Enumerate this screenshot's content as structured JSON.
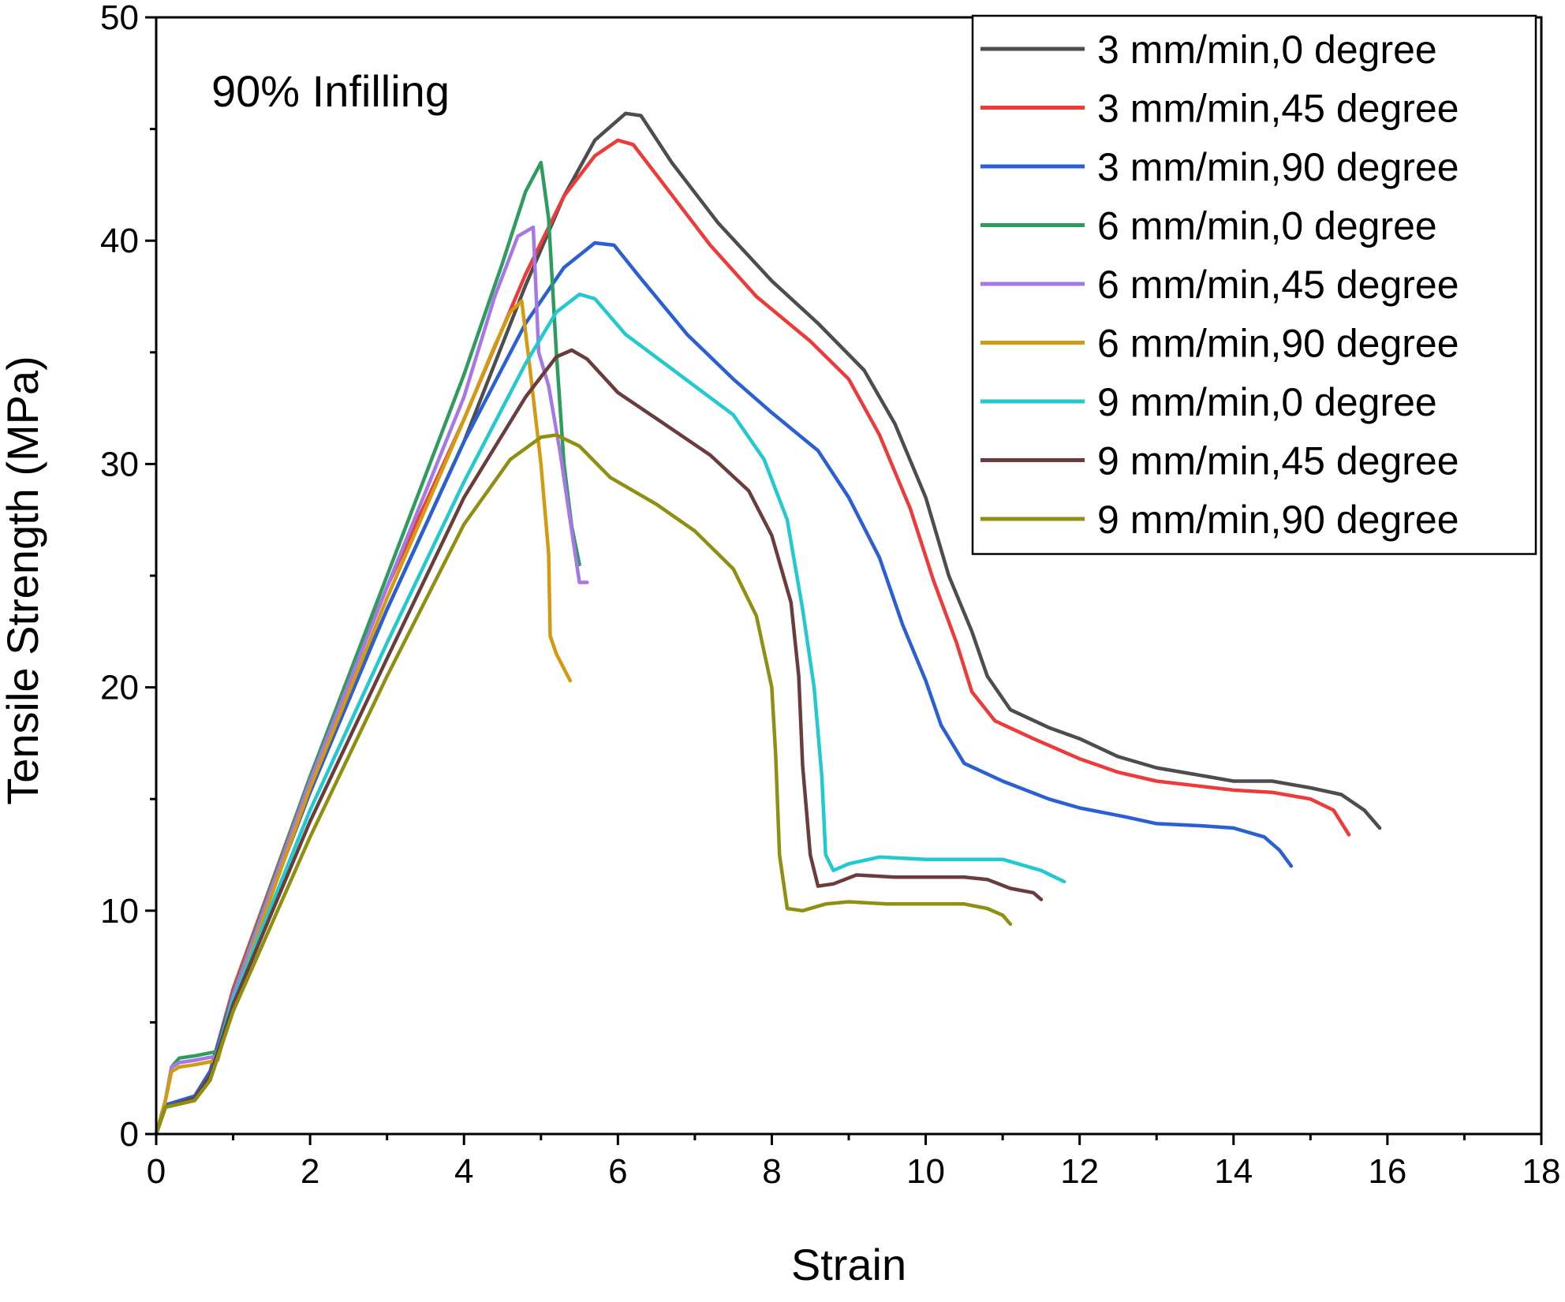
{
  "chart_data": {
    "type": "line",
    "annotation": "90% Infilling",
    "xlabel": "Strain",
    "ylabel": "Tensile Strength (MPa)",
    "xlim": [
      0,
      18
    ],
    "ylim": [
      0,
      50
    ],
    "xticks": [
      0,
      2,
      4,
      6,
      8,
      10,
      12,
      14,
      16,
      18
    ],
    "yticks": [
      0,
      10,
      20,
      30,
      40,
      50
    ],
    "grid": false,
    "legend_position": "top-right",
    "series": [
      {
        "name": "3 mm/min,0 degree",
        "color": "#4d4d4d",
        "points": [
          [
            0,
            0
          ],
          [
            0.12,
            1.2
          ],
          [
            0.5,
            1.6
          ],
          [
            0.7,
            2.6
          ],
          [
            1.0,
            6
          ],
          [
            2,
            15.5
          ],
          [
            3,
            23.5
          ],
          [
            4,
            31
          ],
          [
            4.8,
            38
          ],
          [
            5.3,
            42
          ],
          [
            5.7,
            44.5
          ],
          [
            6.1,
            45.7
          ],
          [
            6.3,
            45.6
          ],
          [
            6.7,
            43.5
          ],
          [
            7.3,
            40.8
          ],
          [
            8,
            38.2
          ],
          [
            8.6,
            36.3
          ],
          [
            9.2,
            34.2
          ],
          [
            9.6,
            31.8
          ],
          [
            10.0,
            28.5
          ],
          [
            10.3,
            25
          ],
          [
            10.6,
            22.5
          ],
          [
            10.8,
            20.5
          ],
          [
            11.1,
            19
          ],
          [
            11.6,
            18.2
          ],
          [
            12,
            17.7
          ],
          [
            12.5,
            16.9
          ],
          [
            13,
            16.4
          ],
          [
            13.5,
            16.1
          ],
          [
            14,
            15.8
          ],
          [
            14.5,
            15.8
          ],
          [
            15,
            15.5
          ],
          [
            15.4,
            15.2
          ],
          [
            15.7,
            14.5
          ],
          [
            15.9,
            13.7
          ]
        ]
      },
      {
        "name": "3 mm/min,45 degree",
        "color": "#ed3b3b",
        "points": [
          [
            0,
            0
          ],
          [
            0.12,
            1.3
          ],
          [
            0.5,
            1.7
          ],
          [
            0.7,
            2.8
          ],
          [
            1.0,
            6.5
          ],
          [
            2,
            16
          ],
          [
            3,
            24.5
          ],
          [
            4,
            32
          ],
          [
            4.8,
            38.5
          ],
          [
            5.3,
            42
          ],
          [
            5.7,
            43.8
          ],
          [
            6.0,
            44.5
          ],
          [
            6.2,
            44.3
          ],
          [
            6.6,
            42.5
          ],
          [
            7.2,
            39.8
          ],
          [
            7.8,
            37.5
          ],
          [
            8.5,
            35.5
          ],
          [
            9.0,
            33.8
          ],
          [
            9.4,
            31.3
          ],
          [
            9.8,
            28
          ],
          [
            10.1,
            24.8
          ],
          [
            10.4,
            22
          ],
          [
            10.6,
            19.8
          ],
          [
            10.9,
            18.5
          ],
          [
            11.4,
            17.7
          ],
          [
            12,
            16.8
          ],
          [
            12.5,
            16.2
          ],
          [
            13,
            15.8
          ],
          [
            13.5,
            15.6
          ],
          [
            14,
            15.4
          ],
          [
            14.5,
            15.3
          ],
          [
            15,
            15
          ],
          [
            15.3,
            14.5
          ],
          [
            15.5,
            13.4
          ]
        ]
      },
      {
        "name": "3 mm/min,90 degree",
        "color": "#2a60d4",
        "points": [
          [
            0,
            0
          ],
          [
            0.12,
            1.3
          ],
          [
            0.5,
            1.7
          ],
          [
            0.7,
            2.8
          ],
          [
            1.0,
            6.3
          ],
          [
            2,
            15.3
          ],
          [
            3,
            23.5
          ],
          [
            4,
            31
          ],
          [
            4.8,
            36.3
          ],
          [
            5.3,
            38.8
          ],
          [
            5.7,
            39.9
          ],
          [
            5.95,
            39.8
          ],
          [
            6.3,
            38.3
          ],
          [
            6.9,
            35.8
          ],
          [
            7.5,
            33.8
          ],
          [
            8,
            32.3
          ],
          [
            8.6,
            30.6
          ],
          [
            9.0,
            28.5
          ],
          [
            9.4,
            25.8
          ],
          [
            9.7,
            22.8
          ],
          [
            10.0,
            20.3
          ],
          [
            10.2,
            18.3
          ],
          [
            10.5,
            16.6
          ],
          [
            11,
            15.8
          ],
          [
            11.6,
            15
          ],
          [
            12,
            14.6
          ],
          [
            12.6,
            14.2
          ],
          [
            13,
            13.9
          ],
          [
            13.6,
            13.8
          ],
          [
            14,
            13.7
          ],
          [
            14.4,
            13.3
          ],
          [
            14.6,
            12.7
          ],
          [
            14.75,
            12.0
          ]
        ]
      },
      {
        "name": "6 mm/min,0 degree",
        "color": "#2e9b5f",
        "points": [
          [
            0,
            0
          ],
          [
            0.12,
            1.5
          ],
          [
            0.2,
            3.0
          ],
          [
            0.3,
            3.4
          ],
          [
            0.5,
            3.5
          ],
          [
            0.8,
            3.7
          ],
          [
            1.0,
            6.3
          ],
          [
            2,
            16
          ],
          [
            3,
            25
          ],
          [
            4,
            34
          ],
          [
            4.5,
            39
          ],
          [
            4.8,
            42.2
          ],
          [
            5.0,
            43.5
          ],
          [
            5.1,
            41
          ],
          [
            5.2,
            35
          ],
          [
            5.3,
            30
          ],
          [
            5.4,
            27.2
          ],
          [
            5.5,
            25.5
          ]
        ]
      },
      {
        "name": "6 mm/min,45 degree",
        "color": "#a777e6",
        "points": [
          [
            0,
            0
          ],
          [
            0.12,
            1.5
          ],
          [
            0.2,
            3.0
          ],
          [
            0.3,
            3.2
          ],
          [
            0.5,
            3.3
          ],
          [
            0.8,
            3.5
          ],
          [
            1.0,
            6.2
          ],
          [
            2,
            15.8
          ],
          [
            3,
            24.5
          ],
          [
            4,
            33
          ],
          [
            4.4,
            37.5
          ],
          [
            4.7,
            40.2
          ],
          [
            4.9,
            40.6
          ],
          [
            4.97,
            35
          ],
          [
            5.1,
            33.5
          ],
          [
            5.25,
            30.5
          ],
          [
            5.4,
            27
          ],
          [
            5.5,
            24.7
          ],
          [
            5.6,
            24.7
          ]
        ]
      },
      {
        "name": "6 mm/min,90 degree",
        "color": "#d39b12",
        "points": [
          [
            0,
            0
          ],
          [
            0.12,
            1.5
          ],
          [
            0.2,
            2.8
          ],
          [
            0.3,
            3.0
          ],
          [
            0.5,
            3.1
          ],
          [
            0.8,
            3.3
          ],
          [
            1.0,
            5.9
          ],
          [
            2,
            15.5
          ],
          [
            3,
            24
          ],
          [
            4,
            32
          ],
          [
            4.4,
            35.3
          ],
          [
            4.6,
            36.8
          ],
          [
            4.75,
            37.3
          ],
          [
            4.85,
            34.5
          ],
          [
            5.0,
            30
          ],
          [
            5.1,
            26
          ],
          [
            5.12,
            22.3
          ],
          [
            5.2,
            21.5
          ],
          [
            5.38,
            20.3
          ]
        ]
      },
      {
        "name": "9 mm/min,0 degree",
        "color": "#22c9cf",
        "points": [
          [
            0,
            0
          ],
          [
            0.12,
            1.2
          ],
          [
            0.5,
            1.6
          ],
          [
            0.7,
            2.6
          ],
          [
            1.0,
            6
          ],
          [
            2,
            14.5
          ],
          [
            3,
            22
          ],
          [
            4,
            29.2
          ],
          [
            4.8,
            34.5
          ],
          [
            5.2,
            36.8
          ],
          [
            5.5,
            37.6
          ],
          [
            5.7,
            37.4
          ],
          [
            6.1,
            35.8
          ],
          [
            6.8,
            34
          ],
          [
            7.5,
            32.2
          ],
          [
            7.9,
            30.2
          ],
          [
            8.2,
            27.5
          ],
          [
            8.4,
            23.5
          ],
          [
            8.55,
            20
          ],
          [
            8.65,
            16
          ],
          [
            8.7,
            12.5
          ],
          [
            8.8,
            11.8
          ],
          [
            9.0,
            12.1
          ],
          [
            9.4,
            12.4
          ],
          [
            10,
            12.3
          ],
          [
            10.5,
            12.3
          ],
          [
            11,
            12.3
          ],
          [
            11.5,
            11.8
          ],
          [
            11.8,
            11.3
          ]
        ]
      },
      {
        "name": "9 mm/min,45 degree",
        "color": "#6b3c3c",
        "points": [
          [
            0,
            0
          ],
          [
            0.12,
            1.2
          ],
          [
            0.5,
            1.6
          ],
          [
            0.7,
            2.6
          ],
          [
            1.0,
            5.8
          ],
          [
            2,
            14
          ],
          [
            3,
            21.3
          ],
          [
            4,
            28.5
          ],
          [
            4.8,
            33
          ],
          [
            5.2,
            34.8
          ],
          [
            5.4,
            35.1
          ],
          [
            5.6,
            34.7
          ],
          [
            6.0,
            33.2
          ],
          [
            6.6,
            31.8
          ],
          [
            7.2,
            30.4
          ],
          [
            7.7,
            28.8
          ],
          [
            8.0,
            26.8
          ],
          [
            8.25,
            23.8
          ],
          [
            8.35,
            20.5
          ],
          [
            8.4,
            16.5
          ],
          [
            8.5,
            12.5
          ],
          [
            8.6,
            11.1
          ],
          [
            8.8,
            11.2
          ],
          [
            9.1,
            11.6
          ],
          [
            9.6,
            11.5
          ],
          [
            10,
            11.5
          ],
          [
            10.5,
            11.5
          ],
          [
            10.8,
            11.4
          ],
          [
            11.1,
            11.0
          ],
          [
            11.4,
            10.8
          ],
          [
            11.5,
            10.5
          ]
        ]
      },
      {
        "name": "9 mm/min,90 degree",
        "color": "#8f8f12",
        "points": [
          [
            0,
            0
          ],
          [
            0.12,
            1.2
          ],
          [
            0.5,
            1.5
          ],
          [
            0.7,
            2.4
          ],
          [
            1.0,
            5.5
          ],
          [
            2,
            13.3
          ],
          [
            3,
            20.5
          ],
          [
            4,
            27.3
          ],
          [
            4.6,
            30.2
          ],
          [
            5.0,
            31.2
          ],
          [
            5.2,
            31.3
          ],
          [
            5.5,
            30.8
          ],
          [
            5.9,
            29.4
          ],
          [
            6.5,
            28.2
          ],
          [
            7,
            27
          ],
          [
            7.5,
            25.3
          ],
          [
            7.8,
            23.2
          ],
          [
            8.0,
            20
          ],
          [
            8.05,
            17
          ],
          [
            8.1,
            12.5
          ],
          [
            8.2,
            10.1
          ],
          [
            8.4,
            10
          ],
          [
            8.7,
            10.3
          ],
          [
            9,
            10.4
          ],
          [
            9.5,
            10.3
          ],
          [
            10,
            10.3
          ],
          [
            10.5,
            10.3
          ],
          [
            10.8,
            10.1
          ],
          [
            11.0,
            9.8
          ],
          [
            11.1,
            9.4
          ]
        ]
      }
    ]
  }
}
